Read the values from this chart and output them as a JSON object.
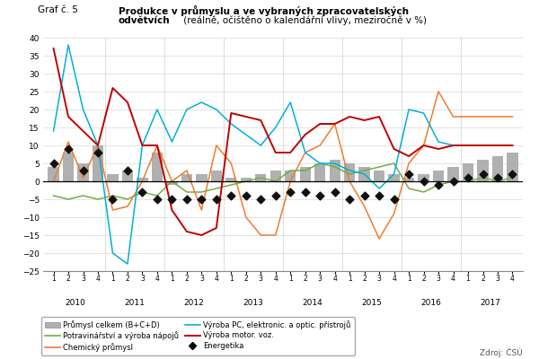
{
  "title_label": "Graf č. 5",
  "title_bold1": "Produkce v průmyslu a ve vybraných zpracovatelských",
  "title_bold2": "odvětvích",
  "title_normal": " (reálně, očištěno o kalendářní vlivy, meziročně v %)",
  "ylim": [
    -25,
    40
  ],
  "yticks": [
    -25,
    -20,
    -15,
    -10,
    -5,
    0,
    5,
    10,
    15,
    20,
    25,
    30,
    35,
    40
  ],
  "years": [
    2010,
    2011,
    2012,
    2013,
    2014,
    2015,
    2016,
    2017
  ],
  "prumy_celkem": [
    4,
    8,
    5,
    10,
    2,
    3,
    1,
    8,
    -1,
    2,
    2,
    3,
    1,
    1,
    2,
    3,
    3,
    4,
    5,
    6,
    5,
    4,
    3,
    2,
    1,
    2,
    3,
    4,
    5,
    6,
    7,
    8
  ],
  "potraviny": [
    -4,
    -5,
    -4,
    -5,
    -4,
    -5,
    -3,
    -4,
    0,
    -3,
    -3,
    -2,
    -1,
    0,
    1,
    0,
    3,
    3,
    5,
    4,
    2,
    3,
    4,
    5,
    -2,
    -3,
    -1,
    0,
    0,
    1,
    0,
    1
  ],
  "chemicky": [
    0,
    11,
    1,
    10,
    -8,
    -7,
    0,
    10,
    0,
    3,
    -8,
    10,
    5,
    -10,
    -15,
    -15,
    0,
    8,
    10,
    16,
    0,
    -7,
    -16,
    -9,
    5,
    10,
    25,
    18,
    18,
    18,
    18,
    18
  ],
  "vyroba_pc": [
    14,
    38,
    20,
    10,
    -20,
    -23,
    10,
    20,
    11,
    20,
    22,
    20,
    16,
    13,
    10,
    15,
    22,
    8,
    5,
    5,
    3,
    2,
    -2,
    2,
    20,
    19,
    11,
    10,
    10,
    10,
    10,
    10
  ],
  "vyroba_motor": [
    37,
    18,
    14,
    10,
    26,
    22,
    10,
    10,
    -8,
    -14,
    -15,
    -13,
    19,
    18,
    17,
    8,
    8,
    13,
    16,
    16,
    18,
    17,
    18,
    9,
    7,
    10,
    9,
    10,
    10,
    10,
    10,
    10
  ],
  "energetika": [
    5,
    9,
    3,
    8,
    -5,
    3,
    -3,
    -5,
    -5,
    -5,
    -5,
    -5,
    -4,
    -4,
    -5,
    -4,
    -3,
    -3,
    -4,
    -3,
    -5,
    -4,
    -4,
    -5,
    2,
    0,
    -1,
    0,
    1,
    2,
    1,
    2
  ],
  "colors": {
    "prumy_celkem": "#b0b0b0",
    "potraviny": "#70ad47",
    "chemicky": "#ed7d31",
    "vyroba_pc": "#00b0d8",
    "vyroba_motor": "#c00000",
    "energetika": "#111111"
  },
  "legend_labels": [
    "Průmysl celkem (B+C+D)",
    "Potravinářství a výroba nápojů",
    "Chemický průmysl",
    "Výroba PC, elektronic. a optic. přístrojů",
    "Výroba motor. voz.",
    "Energetika"
  ],
  "source": "Zdroj: ČSÚ"
}
